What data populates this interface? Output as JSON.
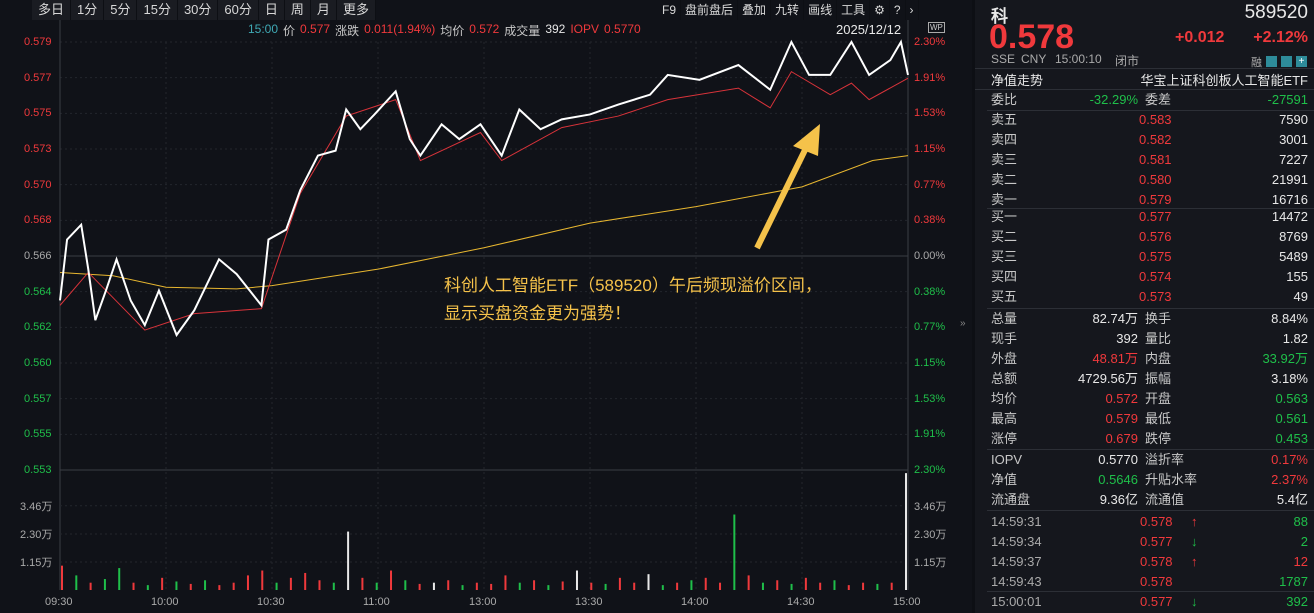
{
  "toolbar": {
    "items": [
      "多日",
      "1分",
      "5分",
      "15分",
      "30分",
      "60分",
      "日",
      "周",
      "月",
      "更多"
    ],
    "right_items": [
      "F9",
      "盘前盘后",
      "叠加",
      "九转",
      "画线",
      "工具"
    ],
    "icons": [
      "gear-icon",
      "help-icon",
      "chevron-right-icon"
    ]
  },
  "info": {
    "time": "15:00",
    "price_label": "价",
    "price": "0.577",
    "change_label": "涨跌",
    "change": "0.011(1.94%)",
    "avg_label": "均价",
    "avg": "0.572",
    "vol_label": "成交量",
    "vol": "392",
    "iopv_label": "IOPV",
    "iopv": "0.5770",
    "date": "2025/12/12"
  },
  "annotation": {
    "line1": "科创人工智能ETF（589520）午后频现溢价区间，",
    "line2": "显示买盘资金更为强势！",
    "color": "#f5c24a"
  },
  "chart_data": {
    "type": "line",
    "price_ticks": [
      "0.579",
      "0.577",
      "0.575",
      "0.573",
      "0.570",
      "0.568",
      "0.566",
      "0.564",
      "0.562",
      "0.560",
      "0.557",
      "0.555",
      "0.553"
    ],
    "pct_ticks": [
      "2.30%",
      "1.91%",
      "1.53%",
      "1.15%",
      "0.77%",
      "0.38%",
      "0.00%",
      "0.38%",
      "0.77%",
      "1.15%",
      "1.53%",
      "1.91%",
      "2.30%"
    ],
    "ylim": [
      0.553,
      0.579
    ],
    "vol_ticks": [
      "3.46万",
      "2.30万",
      "1.15万"
    ],
    "vol_tick_values": [
      34600,
      23000,
      11500
    ],
    "x_ticks": [
      "09:30",
      "10:00",
      "10:30",
      "11:00",
      "13:00",
      "13:30",
      "14:00",
      "14:30",
      "15:00"
    ],
    "price_series": {
      "color": "#ffffff",
      "points": [
        [
          "09:30",
          0.5633
        ],
        [
          "09:32",
          0.567
        ],
        [
          "09:36",
          0.5679
        ],
        [
          "09:38",
          0.5652
        ],
        [
          "09:40",
          0.5621
        ],
        [
          "09:43",
          0.5639
        ],
        [
          "09:46",
          0.5658
        ],
        [
          "09:50",
          0.5633
        ],
        [
          "09:54",
          0.5618
        ],
        [
          "09:58",
          0.5639
        ],
        [
          "10:03",
          0.5612
        ],
        [
          "10:08",
          0.5627
        ],
        [
          "10:15",
          0.5658
        ],
        [
          "10:20",
          0.5649
        ],
        [
          "10:27",
          0.563
        ],
        [
          "10:29",
          0.567
        ],
        [
          "10:34",
          0.5676
        ],
        [
          "10:38",
          0.57
        ],
        [
          "10:43",
          0.5721
        ],
        [
          "10:48",
          0.5724
        ],
        [
          "10:51",
          0.5749
        ],
        [
          "10:55",
          0.5737
        ],
        [
          "10:59",
          0.5746
        ],
        [
          "11:05",
          0.576
        ],
        [
          "11:09",
          0.5731
        ],
        [
          "11:12",
          0.5721
        ],
        [
          "11:18",
          0.574
        ],
        [
          "11:23",
          0.5731
        ],
        [
          "11:29",
          0.574
        ],
        [
          "13:05",
          0.5721
        ],
        [
          "13:10",
          0.5749
        ],
        [
          "13:16",
          0.5737
        ],
        [
          "13:22",
          0.5743
        ],
        [
          "13:30",
          0.5746
        ],
        [
          "13:38",
          0.5752
        ],
        [
          "13:47",
          0.5758
        ],
        [
          "13:52",
          0.577
        ],
        [
          "14:01",
          0.5767
        ],
        [
          "14:12",
          0.5776
        ],
        [
          "14:21",
          0.5761
        ],
        [
          "14:27",
          0.579
        ],
        [
          "14:32",
          0.577
        ],
        [
          "14:38",
          0.577
        ],
        [
          "14:44",
          0.579
        ],
        [
          "14:49",
          0.577
        ],
        [
          "14:55",
          0.5779
        ],
        [
          "14:58",
          0.579
        ],
        [
          "15:00",
          0.577
        ]
      ]
    },
    "iopv_series": {
      "color": "#d8333a",
      "points": [
        [
          "09:30",
          0.563
        ],
        [
          "09:38",
          0.565
        ],
        [
          "09:54",
          0.5615
        ],
        [
          "10:08",
          0.5625
        ],
        [
          "10:27",
          0.5628
        ],
        [
          "10:38",
          0.5698
        ],
        [
          "10:51",
          0.5745
        ],
        [
          "11:05",
          0.5755
        ],
        [
          "11:12",
          0.5718
        ],
        [
          "11:29",
          0.5735
        ],
        [
          "13:05",
          0.5718
        ],
        [
          "13:22",
          0.5738
        ],
        [
          "13:38",
          0.5745
        ],
        [
          "13:52",
          0.5755
        ],
        [
          "14:12",
          0.5762
        ],
        [
          "14:21",
          0.575
        ],
        [
          "14:27",
          0.5772
        ],
        [
          "14:38",
          0.5758
        ],
        [
          "14:44",
          0.5765
        ],
        [
          "14:49",
          0.5755
        ],
        [
          "15:00",
          0.5768
        ]
      ]
    },
    "avg_series": {
      "color": "#e8b730",
      "points": [
        [
          "09:30",
          0.565
        ],
        [
          "09:45",
          0.5648
        ],
        [
          "10:00",
          0.5641
        ],
        [
          "10:20",
          0.564
        ],
        [
          "10:30",
          0.5642
        ],
        [
          "11:00",
          0.5652
        ],
        [
          "11:30",
          0.5665
        ],
        [
          "13:30",
          0.568
        ],
        [
          "14:00",
          0.569
        ],
        [
          "14:30",
          0.5702
        ],
        [
          "14:50",
          0.5718
        ],
        [
          "15:00",
          0.5721
        ]
      ]
    },
    "volume": [
      [
        10000,
        "r"
      ],
      [
        6000,
        "g"
      ],
      [
        3000,
        "r"
      ],
      [
        4500,
        "g"
      ],
      [
        9000,
        "g"
      ],
      [
        3000,
        "r"
      ],
      [
        2000,
        "g"
      ],
      [
        5000,
        "r"
      ],
      [
        3500,
        "g"
      ],
      [
        2500,
        "r"
      ],
      [
        4000,
        "g"
      ],
      [
        2000,
        "r"
      ],
      [
        3000,
        "r"
      ],
      [
        6000,
        "r"
      ],
      [
        8000,
        "r"
      ],
      [
        3000,
        "g"
      ],
      [
        5000,
        "r"
      ],
      [
        7000,
        "r"
      ],
      [
        4000,
        "r"
      ],
      [
        3000,
        "g"
      ],
      [
        24000,
        "w"
      ],
      [
        5000,
        "r"
      ],
      [
        3000,
        "g"
      ],
      [
        8000,
        "r"
      ],
      [
        4000,
        "g"
      ],
      [
        2500,
        "r"
      ],
      [
        3000,
        "w"
      ],
      [
        4000,
        "r"
      ],
      [
        2000,
        "g"
      ],
      [
        3000,
        "r"
      ],
      [
        2500,
        "r"
      ],
      [
        6000,
        "r"
      ],
      [
        3000,
        "g"
      ],
      [
        4000,
        "r"
      ],
      [
        2000,
        "g"
      ],
      [
        3500,
        "r"
      ],
      [
        8000,
        "w"
      ],
      [
        3000,
        "r"
      ],
      [
        2500,
        "g"
      ],
      [
        5000,
        "r"
      ],
      [
        3000,
        "r"
      ],
      [
        6500,
        "w"
      ],
      [
        2000,
        "g"
      ],
      [
        3000,
        "r"
      ],
      [
        4000,
        "g"
      ],
      [
        5000,
        "r"
      ],
      [
        3000,
        "r"
      ],
      [
        31000,
        "g"
      ],
      [
        6000,
        "r"
      ],
      [
        3000,
        "g"
      ],
      [
        4000,
        "r"
      ],
      [
        2500,
        "g"
      ],
      [
        5000,
        "r"
      ],
      [
        3000,
        "r"
      ],
      [
        4000,
        "g"
      ],
      [
        2000,
        "r"
      ],
      [
        3000,
        "r"
      ],
      [
        2500,
        "g"
      ],
      [
        3000,
        "r"
      ],
      [
        48000,
        "w"
      ]
    ]
  },
  "quote": {
    "name": "科",
    "code": "589520",
    "price": "0.578",
    "change": "+0.012",
    "change_pct": "+2.12%",
    "exchange": "SSE",
    "currency": "CNY",
    "time": "15:00:10",
    "status": "闭市",
    "margin": "融",
    "nav_label": "净值走势",
    "fund_name": "华宝上证科创板人工智能ETF"
  },
  "order": {
    "wb_label": "委比",
    "wb": "-32.29%",
    "wc_label": "委差",
    "wc": "-27591",
    "asks": [
      {
        "label": "卖五",
        "price": "0.583",
        "vol": "7590"
      },
      {
        "label": "卖四",
        "price": "0.582",
        "vol": "3001"
      },
      {
        "label": "卖三",
        "price": "0.581",
        "vol": "7227"
      },
      {
        "label": "卖二",
        "price": "0.580",
        "vol": "21991"
      },
      {
        "label": "卖一",
        "price": "0.579",
        "vol": "16716"
      }
    ],
    "bids": [
      {
        "label": "买一",
        "price": "0.577",
        "vol": "14472"
      },
      {
        "label": "买二",
        "price": "0.576",
        "vol": "8769"
      },
      {
        "label": "买三",
        "price": "0.575",
        "vol": "5489"
      },
      {
        "label": "买四",
        "price": "0.574",
        "vol": "155"
      },
      {
        "label": "买五",
        "price": "0.573",
        "vol": "49"
      }
    ]
  },
  "stats": [
    {
      "l1": "总量",
      "v1": "82.74万",
      "c1": "white",
      "l2": "换手",
      "v2": "8.84%",
      "c2": "white"
    },
    {
      "l1": "现手",
      "v1": "392",
      "c1": "white",
      "l2": "量比",
      "v2": "1.82",
      "c2": "white"
    },
    {
      "l1": "外盘",
      "v1": "48.81万",
      "c1": "red",
      "l2": "内盘",
      "v2": "33.92万",
      "c2": "green"
    },
    {
      "l1": "总额",
      "v1": "4729.56万",
      "c1": "white",
      "l2": "振幅",
      "v2": "3.18%",
      "c2": "white"
    },
    {
      "l1": "均价",
      "v1": "0.572",
      "c1": "red",
      "l2": "开盘",
      "v2": "0.563",
      "c2": "green"
    },
    {
      "l1": "最高",
      "v1": "0.579",
      "c1": "red",
      "l2": "最低",
      "v2": "0.561",
      "c2": "green"
    },
    {
      "l1": "涨停",
      "v1": "0.679",
      "c1": "red",
      "l2": "跌停",
      "v2": "0.453",
      "c2": "green"
    }
  ],
  "stats2": [
    {
      "l1": "IOPV",
      "v1": "0.5770",
      "c1": "white",
      "l2": "溢折率",
      "v2": "0.17%",
      "c2": "red"
    },
    {
      "l1": "净值",
      "v1": "0.5646",
      "c1": "green",
      "l2": "升贴水率",
      "v2": "2.37%",
      "c2": "red"
    },
    {
      "l1": "流通盘",
      "v1": "9.36亿",
      "c1": "white",
      "l2": "流通值",
      "v2": "5.4亿",
      "c2": "white"
    }
  ],
  "ticks": [
    {
      "time": "14:59:31",
      "price": "0.578",
      "dir": "up",
      "vol": "88",
      "vc": "green"
    },
    {
      "time": "14:59:34",
      "price": "0.577",
      "dir": "down",
      "vol": "2",
      "vc": "green"
    },
    {
      "time": "14:59:37",
      "price": "0.578",
      "dir": "up",
      "vol": "12",
      "vc": "red"
    },
    {
      "time": "14:59:43",
      "price": "0.578",
      "dir": "",
      "vol": "1787",
      "vc": "green"
    },
    {
      "time": "15:00:01",
      "price": "0.577",
      "dir": "down",
      "vol": "392",
      "vc": "green"
    }
  ]
}
